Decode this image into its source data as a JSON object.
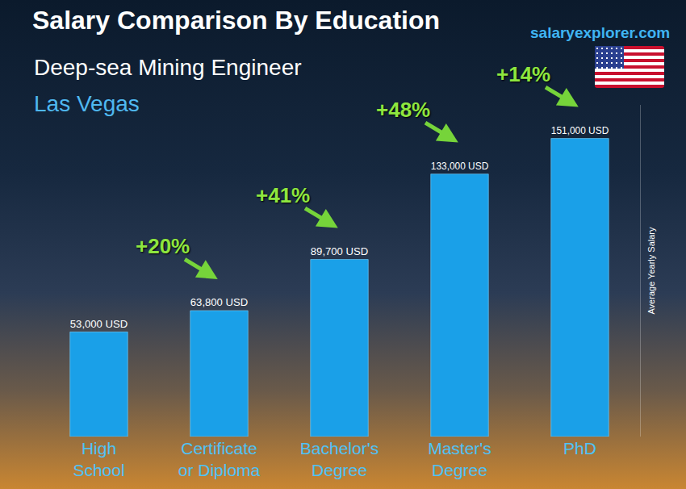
{
  "chart_data": {
    "type": "bar",
    "title": "Salary Comparison By Education",
    "subtitle": "Deep-sea Mining Engineer",
    "location": "Las Vegas",
    "source": "salaryexplorer.com",
    "y_label": "Average Yearly Salary",
    "categories": [
      "High School",
      "Certificate or Diploma",
      "Bachelor's Degree",
      "Master's Degree",
      "PhD"
    ],
    "values": [
      53000,
      63800,
      89700,
      133000,
      151000
    ],
    "value_labels": [
      "53,000 USD",
      "63,800 USD",
      "89,700 USD",
      "133,000 USD",
      "151,000 USD"
    ],
    "changes": [
      20,
      41,
      48,
      14
    ],
    "change_labels": [
      "+20%",
      "+41%",
      "+48%",
      "+14%"
    ],
    "color": "#1aa0e8",
    "data_labels": true,
    "tick_labels": "x",
    "grid": false,
    "ylim": [
      0,
      168000
    ]
  }
}
